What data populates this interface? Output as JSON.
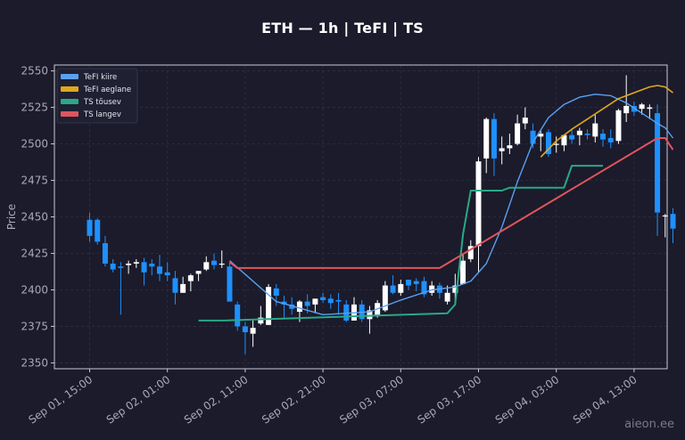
{
  "chart_data": {
    "type": "candlestick",
    "title": "ETH — 1h  |  TeFI  |  TS",
    "xlabel": "",
    "ylabel": "Price",
    "ylim": [
      2346,
      2554
    ],
    "yticks": [
      2350,
      2375,
      2400,
      2425,
      2450,
      2475,
      2500,
      2525,
      2550
    ],
    "xtick_labels": [
      "Sep 01, 15:00",
      "Sep 02, 01:00",
      "Sep 02, 11:00",
      "Sep 02, 21:00",
      "Sep 03, 07:00",
      "Sep 03, 17:00",
      "Sep 04, 03:00",
      "Sep 04, 13:00"
    ],
    "xtick_index": [
      0,
      10,
      20,
      30,
      40,
      50,
      60,
      70
    ],
    "grid": true,
    "legend_position": "top-left",
    "colors": {
      "up": "#ffffff",
      "down": "#1e90ff",
      "tefi_fast": "#5aa0f0",
      "tefi_slow": "#e0a81e",
      "ts_up": "#2aa887",
      "ts_down": "#e0555d"
    },
    "candles": [
      [
        2448,
        2453,
        2433,
        2437
      ],
      [
        2448,
        2449,
        2431,
        2433
      ],
      [
        2432,
        2437,
        2416,
        2418
      ],
      [
        2418,
        2421,
        2412,
        2414
      ],
      [
        2416,
        2419,
        2383,
        2415
      ],
      [
        2417,
        2420,
        2411,
        2418
      ],
      [
        2418,
        2421,
        2415,
        2419
      ],
      [
        2419,
        2422,
        2403,
        2412
      ],
      [
        2418,
        2421,
        2410,
        2416
      ],
      [
        2416,
        2424,
        2406,
        2411
      ],
      [
        2412,
        2419,
        2406,
        2410
      ],
      [
        2408,
        2413,
        2390,
        2398
      ],
      [
        2398,
        2409,
        2398,
        2404
      ],
      [
        2406,
        2411,
        2399,
        2410
      ],
      [
        2411,
        2413,
        2406,
        2413
      ],
      [
        2414,
        2423,
        2413,
        2419
      ],
      [
        2420,
        2425,
        2414,
        2417
      ],
      [
        2418,
        2427,
        2415,
        2418
      ],
      [
        2416,
        2419,
        2392,
        2392
      ],
      [
        2390,
        2392,
        2372,
        2375
      ],
      [
        2375,
        2378,
        2356,
        2371
      ],
      [
        2370,
        2379,
        2361,
        2374
      ],
      [
        2377,
        2389,
        2376,
        2381
      ],
      [
        2376,
        2404,
        2376,
        2402
      ],
      [
        2401,
        2404,
        2389,
        2396
      ],
      [
        2392,
        2396,
        2381,
        2390
      ],
      [
        2390,
        2395,
        2383,
        2387
      ],
      [
        2385,
        2393,
        2378,
        2392
      ],
      [
        2392,
        2397,
        2384,
        2389
      ],
      [
        2390,
        2394,
        2384,
        2394
      ],
      [
        2395,
        2398,
        2391,
        2393
      ],
      [
        2394,
        2397,
        2387,
        2391
      ],
      [
        2393,
        2398,
        2383,
        2392
      ],
      [
        2390,
        2393,
        2378,
        2379
      ],
      [
        2379,
        2395,
        2379,
        2390
      ],
      [
        2390,
        2393,
        2378,
        2380
      ],
      [
        2380,
        2389,
        2370,
        2386
      ],
      [
        2383,
        2393,
        2381,
        2391
      ],
      [
        2386,
        2406,
        2385,
        2403
      ],
      [
        2403,
        2410,
        2397,
        2398
      ],
      [
        2398,
        2407,
        2396,
        2404
      ],
      [
        2407,
        2407,
        2400,
        2403
      ],
      [
        2406,
        2408,
        2399,
        2404
      ],
      [
        2406,
        2409,
        2395,
        2397
      ],
      [
        2398,
        2406,
        2396,
        2403
      ],
      [
        2403,
        2405,
        2394,
        2398
      ],
      [
        2392,
        2403,
        2390,
        2398
      ],
      [
        2398,
        2411,
        2391,
        2403
      ],
      [
        2404,
        2425,
        2404,
        2420
      ],
      [
        2421,
        2434,
        2419,
        2430
      ],
      [
        2430,
        2491,
        2412,
        2488
      ],
      [
        2490,
        2518,
        2480,
        2517
      ],
      [
        2517,
        2521,
        2478,
        2490
      ],
      [
        2495,
        2505,
        2486,
        2497
      ],
      [
        2497,
        2507,
        2493,
        2499
      ],
      [
        2500,
        2520,
        2499,
        2514
      ],
      [
        2514,
        2525,
        2510,
        2518
      ],
      [
        2509,
        2514,
        2497,
        2500
      ],
      [
        2505,
        2509,
        2495,
        2507
      ],
      [
        2508,
        2510,
        2491,
        2493
      ],
      [
        2500,
        2505,
        2494,
        2500
      ],
      [
        2499,
        2504,
        2495,
        2506
      ],
      [
        2506,
        2510,
        2500,
        2503
      ],
      [
        2506,
        2511,
        2499,
        2509
      ],
      [
        2507,
        2510,
        2503,
        2506
      ],
      [
        2505,
        2520,
        2501,
        2514
      ],
      [
        2507,
        2510,
        2498,
        2503
      ],
      [
        2504,
        2510,
        2497,
        2501
      ],
      [
        2502,
        2524,
        2500,
        2523
      ],
      [
        2521,
        2547,
        2515,
        2526
      ],
      [
        2526,
        2529,
        2519,
        2522
      ],
      [
        2524,
        2528,
        2520,
        2527
      ],
      [
        2524,
        2527,
        2517,
        2525
      ],
      [
        2521,
        2527,
        2437,
        2453
      ],
      [
        2451,
        2452,
        2436,
        2451
      ],
      [
        2452,
        2456,
        2432,
        2442
      ]
    ],
    "series": [
      {
        "name": "TeFI kiire",
        "points": [
          [
            18,
            2420
          ],
          [
            24,
            2392
          ],
          [
            30,
            2383
          ],
          [
            36,
            2385
          ],
          [
            40,
            2393
          ],
          [
            44,
            2400
          ],
          [
            47,
            2402
          ],
          [
            49,
            2406
          ],
          [
            51,
            2418
          ],
          [
            53,
            2443
          ],
          [
            55,
            2474
          ],
          [
            57,
            2501
          ],
          [
            59,
            2518
          ],
          [
            61,
            2527
          ],
          [
            63,
            2532
          ],
          [
            65,
            2534
          ],
          [
            67,
            2533
          ],
          [
            69,
            2528
          ],
          [
            71,
            2521
          ],
          [
            73,
            2514
          ],
          [
            74,
            2511
          ],
          [
            75,
            2504
          ]
        ]
      },
      {
        "name": "TeFI aeglane",
        "points": [
          [
            58,
            2491
          ],
          [
            60,
            2502
          ],
          [
            62,
            2510
          ],
          [
            64,
            2517
          ],
          [
            66,
            2524
          ],
          [
            68,
            2531
          ],
          [
            70,
            2535
          ],
          [
            72,
            2539
          ],
          [
            73,
            2540
          ],
          [
            74,
            2539
          ],
          [
            75,
            2535
          ]
        ]
      },
      {
        "name": "TS tõusev",
        "points": [
          [
            14,
            2379
          ],
          [
            17,
            2379
          ],
          [
            46,
            2384
          ],
          [
            47,
            2390
          ],
          [
            48,
            2438
          ],
          [
            49,
            2468
          ],
          [
            53,
            2468
          ],
          [
            54,
            2470
          ],
          [
            61,
            2470
          ],
          [
            62,
            2485
          ],
          [
            66,
            2485
          ]
        ]
      },
      {
        "name": "TS langev",
        "points": [
          [
            18,
            2419
          ],
          [
            19,
            2415
          ],
          [
            45,
            2415
          ],
          [
            73,
            2504
          ],
          [
            74,
            2504
          ],
          [
            75,
            2496
          ]
        ]
      }
    ]
  },
  "watermark": "aieon.ee"
}
